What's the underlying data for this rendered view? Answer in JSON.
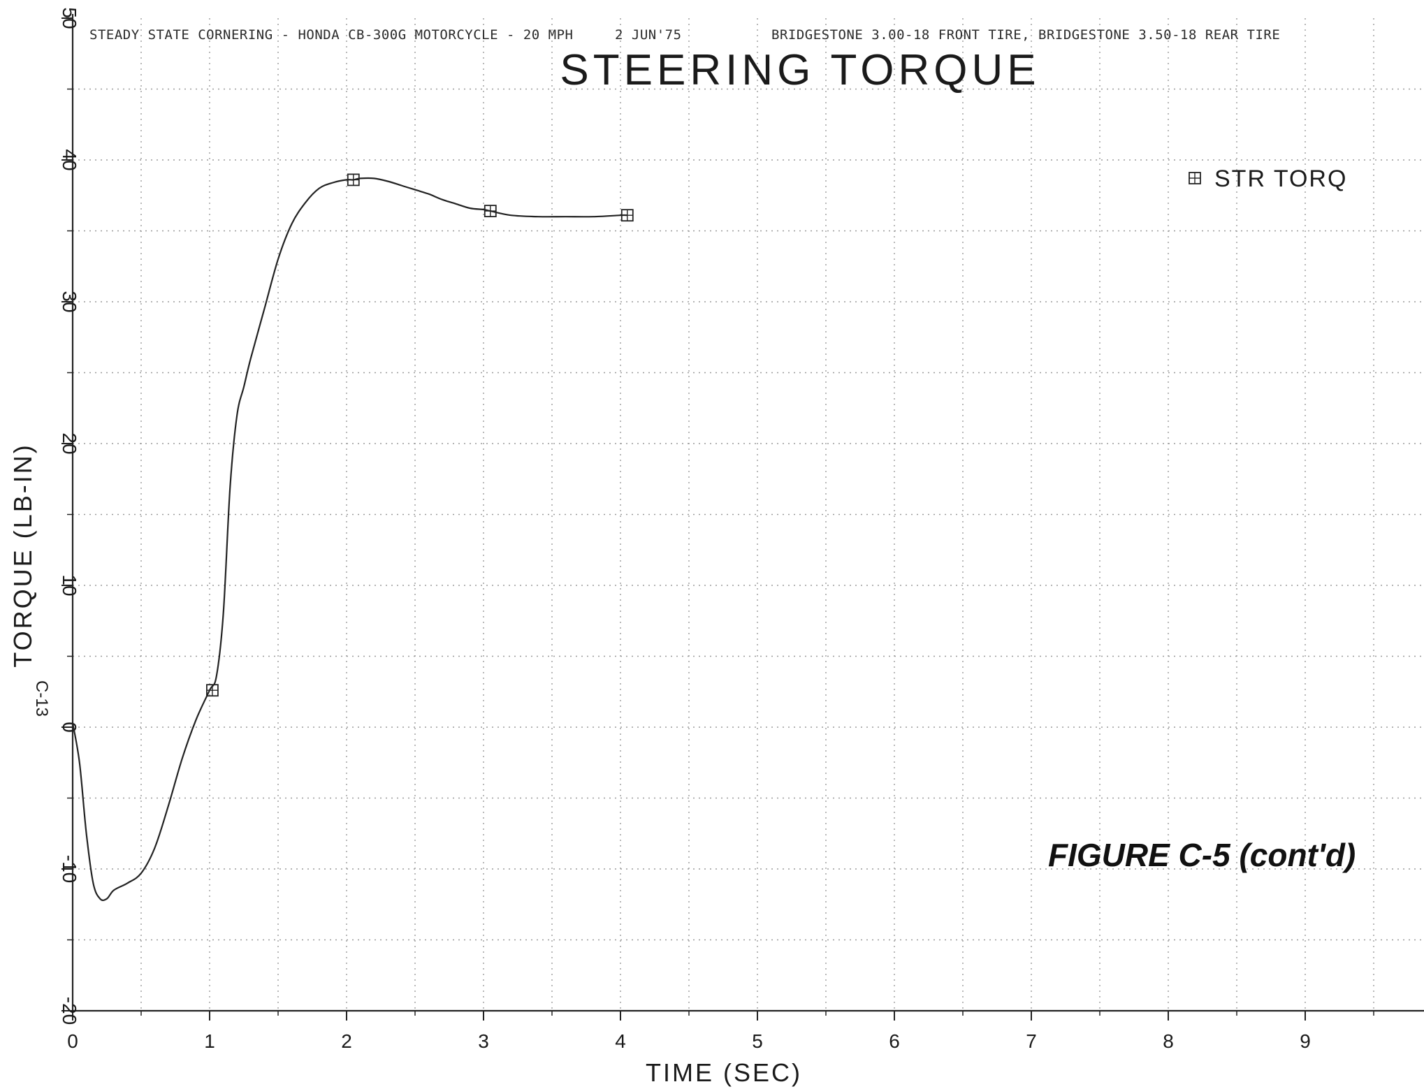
{
  "header": {
    "run_info": "STEADY STATE CORNERING - HONDA CB-300G MOTORCYCLE - 20 MPH",
    "date": "2 JUN'75",
    "tires": "BRIDGESTONE 3.00-18 FRONT TIRE, BRIDGESTONE 3.50-18 REAR TIRE"
  },
  "page_number": "C-13",
  "figure_caption": "FIGURE C-5 (cont'd)",
  "colors": {
    "curve": "#222222",
    "grid": "#9a9a9a",
    "axis": "#222222"
  },
  "chart_data": {
    "type": "line",
    "title": "STEERING TORQUE",
    "xlabel": "TIME (SEC)",
    "ylabel": "TORQUE (LB-IN)",
    "xlim": [
      0,
      10
    ],
    "ylim": [
      -20,
      50
    ],
    "x_ticks": [
      "0",
      "1",
      "2",
      "3",
      "4",
      "5",
      "6",
      "7",
      "8",
      "9"
    ],
    "y_ticks": [
      "-20",
      "-10",
      "0",
      "10",
      "20",
      "30",
      "40",
      "50"
    ],
    "grid": true,
    "legend_position": "top-right",
    "series": [
      {
        "name": "STR TORQ",
        "marker": "square-with-plus",
        "x": [
          0.0,
          0.05,
          0.1,
          0.15,
          0.2,
          0.25,
          0.3,
          0.4,
          0.5,
          0.6,
          0.7,
          0.8,
          0.9,
          1.0,
          1.05,
          1.1,
          1.15,
          1.2,
          1.25,
          1.3,
          1.4,
          1.5,
          1.6,
          1.7,
          1.8,
          1.9,
          2.0,
          2.05,
          2.1,
          2.2,
          2.3,
          2.4,
          2.5,
          2.6,
          2.7,
          2.8,
          2.9,
          3.0,
          3.05,
          3.2,
          3.4,
          3.6,
          3.8,
          4.0,
          4.05
        ],
        "y": [
          0.3,
          -2.5,
          -7.5,
          -11.0,
          -12.1,
          -12.1,
          -11.5,
          -11.0,
          -10.3,
          -8.5,
          -5.5,
          -2.2,
          0.5,
          2.6,
          3.6,
          8.0,
          17.0,
          22.0,
          24.0,
          26.0,
          29.5,
          33.0,
          35.5,
          37.0,
          38.0,
          38.4,
          38.6,
          38.6,
          38.7,
          38.7,
          38.5,
          38.2,
          37.9,
          37.6,
          37.2,
          36.9,
          36.6,
          36.5,
          36.4,
          36.1,
          36.0,
          36.0,
          36.0,
          36.1,
          36.1
        ],
        "markers": [
          {
            "x": 1.02,
            "y": 2.6
          },
          {
            "x": 2.05,
            "y": 38.6
          },
          {
            "x": 3.05,
            "y": 36.4
          },
          {
            "x": 4.05,
            "y": 36.1
          }
        ]
      }
    ]
  }
}
